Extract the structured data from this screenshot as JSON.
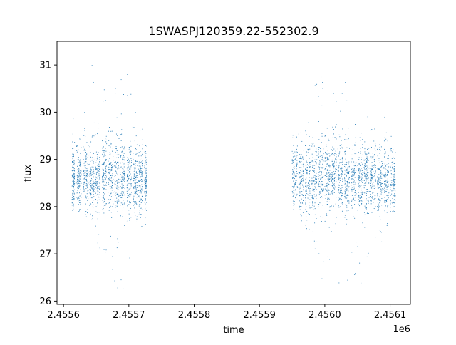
{
  "chart_data": {
    "type": "scatter",
    "title": "1SWASPJ120359.22-552302.9",
    "xlabel": "time",
    "ylabel": "flux",
    "x_offset_label": "1e6",
    "xlim": [
      2.45559,
      2.456131
    ],
    "ylim": [
      25.93,
      31.5
    ],
    "x_ticks": [
      2.4556,
      2.4557,
      2.4558,
      2.4559,
      2.456,
      2.4561
    ],
    "x_tick_labels": [
      "2.4556",
      "2.4557",
      "2.4558",
      "2.4559",
      "2.4560",
      "2.4561"
    ],
    "y_ticks": [
      26,
      27,
      28,
      29,
      30,
      31
    ],
    "y_tick_labels": [
      "26",
      "27",
      "28",
      "29",
      "30",
      "31"
    ],
    "grid": false,
    "legend": "none",
    "point_color": "#1f77b4",
    "series": [
      {
        "clusters": [
          {
            "x_range": [
              2.455613,
              2.455617
            ],
            "y_center": 28.6,
            "y_spread": 0.75,
            "y_min": 27.8,
            "y_max": 30.1
          },
          {
            "x_range": [
              2.45562,
              2.455627
            ],
            "y_center": 28.6,
            "y_spread": 0.8,
            "y_min": 27.9,
            "y_max": 29.8
          },
          {
            "x_range": [
              2.45563,
              2.455638
            ],
            "y_center": 28.7,
            "y_spread": 0.8,
            "y_min": 27.5,
            "y_max": 30.4
          },
          {
            "x_range": [
              2.45564,
              2.455647
            ],
            "y_center": 28.5,
            "y_spread": 0.8,
            "y_min": 27.3,
            "y_max": 31.0
          },
          {
            "x_range": [
              2.455649,
              2.455656
            ],
            "y_center": 28.5,
            "y_spread": 0.85,
            "y_min": 26.5,
            "y_max": 30.0
          },
          {
            "x_range": [
              2.455659,
              2.455666
            ],
            "y_center": 28.7,
            "y_spread": 0.9,
            "y_min": 26.6,
            "y_max": 30.6
          },
          {
            "x_range": [
              2.455668,
              2.455676
            ],
            "y_center": 28.7,
            "y_spread": 0.85,
            "y_min": 26.6,
            "y_max": 29.9
          },
          {
            "x_range": [
              2.455678,
              2.455685
            ],
            "y_center": 28.6,
            "y_spread": 0.9,
            "y_min": 26.2,
            "y_max": 30.7
          },
          {
            "x_range": [
              2.455687,
              2.455694
            ],
            "y_center": 28.6,
            "y_spread": 0.9,
            "y_min": 26.2,
            "y_max": 31.2
          },
          {
            "x_range": [
              2.455697,
              2.455704
            ],
            "y_center": 28.6,
            "y_spread": 0.8,
            "y_min": 26.4,
            "y_max": 30.9
          },
          {
            "x_range": [
              2.455706,
              2.455713
            ],
            "y_center": 28.5,
            "y_spread": 0.85,
            "y_min": 26.9,
            "y_max": 30.7
          },
          {
            "x_range": [
              2.455715,
              2.455721
            ],
            "y_center": 28.5,
            "y_spread": 0.8,
            "y_min": 27.3,
            "y_max": 30.0
          },
          {
            "x_range": [
              2.455724,
              2.455728
            ],
            "y_center": 28.6,
            "y_spread": 0.75,
            "y_min": 27.6,
            "y_max": 29.8
          },
          {
            "x_range": [
              2.45595,
              2.455958
            ],
            "y_center": 28.7,
            "y_spread": 0.75,
            "y_min": 27.9,
            "y_max": 29.6
          },
          {
            "x_range": [
              2.45596,
              2.455968
            ],
            "y_center": 28.6,
            "y_spread": 0.8,
            "y_min": 27.7,
            "y_max": 29.8
          },
          {
            "x_range": [
              2.45597,
              2.455978
            ],
            "y_center": 28.6,
            "y_spread": 0.85,
            "y_min": 27.4,
            "y_max": 30.0
          },
          {
            "x_range": [
              2.45598,
              2.455988
            ],
            "y_center": 28.6,
            "y_spread": 0.85,
            "y_min": 27.0,
            "y_max": 30.6
          },
          {
            "x_range": [
              2.45599,
              2.455998
            ],
            "y_center": 28.7,
            "y_spread": 0.9,
            "y_min": 26.4,
            "y_max": 30.8
          },
          {
            "x_range": [
              2.456,
              2.456008
            ],
            "y_center": 28.6,
            "y_spread": 0.85,
            "y_min": 26.8,
            "y_max": 30.5
          },
          {
            "x_range": [
              2.45601,
              2.456018
            ],
            "y_center": 28.7,
            "y_spread": 0.9,
            "y_min": 26.5,
            "y_max": 31.2
          },
          {
            "x_range": [
              2.45602,
              2.456028
            ],
            "y_center": 28.6,
            "y_spread": 0.85,
            "y_min": 26.3,
            "y_max": 31.2
          },
          {
            "x_range": [
              2.45603,
              2.456038
            ],
            "y_center": 28.6,
            "y_spread": 0.9,
            "y_min": 26.2,
            "y_max": 30.9
          },
          {
            "x_range": [
              2.45604,
              2.456048
            ],
            "y_center": 28.6,
            "y_spread": 0.9,
            "y_min": 26.2,
            "y_max": 30.9
          },
          {
            "x_range": [
              2.45605,
              2.456058
            ],
            "y_center": 28.6,
            "y_spread": 0.85,
            "y_min": 26.3,
            "y_max": 30.6
          },
          {
            "x_range": [
              2.45606,
              2.456068
            ],
            "y_center": 28.6,
            "y_spread": 0.85,
            "y_min": 26.9,
            "y_max": 30.0
          },
          {
            "x_range": [
              2.45607,
              2.456078
            ],
            "y_center": 28.6,
            "y_spread": 0.85,
            "y_min": 27.0,
            "y_max": 29.9
          },
          {
            "x_range": [
              2.45608,
              2.456088
            ],
            "y_center": 28.6,
            "y_spread": 0.8,
            "y_min": 27.2,
            "y_max": 29.7
          },
          {
            "x_range": [
              2.45609,
              2.456098
            ],
            "y_center": 28.6,
            "y_spread": 0.75,
            "y_min": 27.6,
            "y_max": 30.0
          },
          {
            "x_range": [
              2.4561,
              2.456108
            ],
            "y_center": 28.5,
            "y_spread": 0.7,
            "y_min": 27.9,
            "y_max": 29.6
          }
        ]
      }
    ]
  }
}
